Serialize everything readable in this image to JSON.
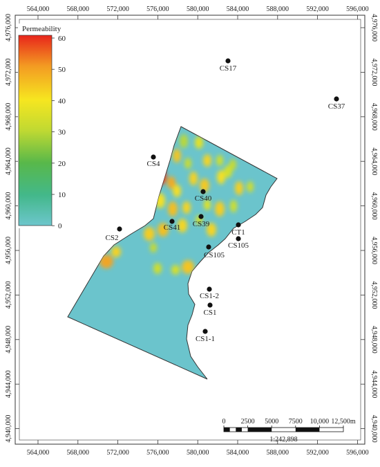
{
  "x_ticks": [
    "564,000",
    "568,000",
    "572,000",
    "576,000",
    "580,000",
    "584,000",
    "588,000",
    "592,000",
    "596,000"
  ],
  "y_ticks": [
    "4,976,000",
    "4,972,000",
    "4,968,000",
    "4,964,000",
    "4,960,000",
    "4,956,000",
    "4,952,000",
    "4,948,000",
    "4,944,000",
    "4,940,000"
  ],
  "legend": {
    "title": "Permeability",
    "ticks": [
      "60",
      "50",
      "40",
      "30",
      "20",
      "10",
      "0"
    ],
    "colors": [
      "#e8251b",
      "#f39a22",
      "#f6e620",
      "#c0d932",
      "#58b84a",
      "#43b88a",
      "#6dc6cc"
    ]
  },
  "wells": [
    {
      "name": "CS17"
    },
    {
      "name": "CS37"
    },
    {
      "name": "CS4"
    },
    {
      "name": "CS40"
    },
    {
      "name": "CS39"
    },
    {
      "name": "CS41"
    },
    {
      "name": "CS2"
    },
    {
      "name": "CT1"
    },
    {
      "name": "CS105"
    },
    {
      "name": "CS105"
    },
    {
      "name": "CS1-2"
    },
    {
      "name": "CS1"
    },
    {
      "name": "CS1-1"
    }
  ],
  "scale_bar": {
    "labels": [
      "0",
      "2500",
      "5000",
      "7500",
      "10,000",
      "12,500m"
    ],
    "ratio": "1:242,898"
  },
  "colors": {
    "field_fill": "#6bc4cc",
    "frame": "#333333"
  }
}
